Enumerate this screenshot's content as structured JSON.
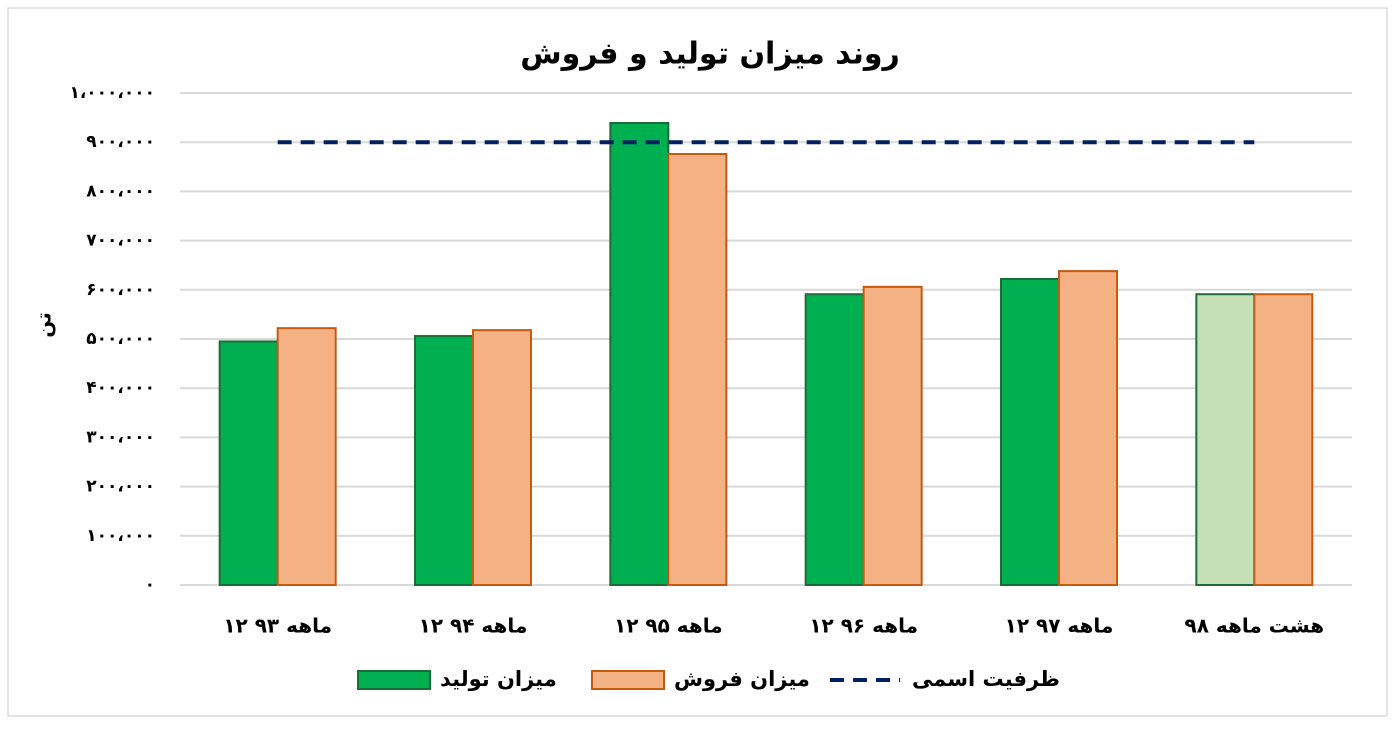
{
  "chart_data": {
    "type": "bar",
    "title": "روند میزان تولید و فروش",
    "y_label": "تن",
    "categories": [
      "۱۲ ماهه ۹۳",
      "۱۲ ماهه ۹۴",
      "۱۲ ماهه ۹۵",
      "۱۲ ماهه ۹۶",
      "۱۲ ماهه ۹۷",
      "هشت ماهه ۹۸"
    ],
    "series": [
      {
        "name": "میزان تولید",
        "type": "bar",
        "color": "#00b050",
        "stroke": "#1e6b3a",
        "colors": [
          "#00b050",
          "#00b050",
          "#00b050",
          "#00b050",
          "#00b050",
          "#c5e0b4"
        ],
        "values": [
          495000,
          506000,
          939000,
          591000,
          622000,
          591000
        ]
      },
      {
        "name": "میزان فروش",
        "type": "bar",
        "color": "#f4b183",
        "stroke": "#c55a11",
        "values": [
          522000,
          518000,
          876000,
          606000,
          638000,
          591000
        ]
      },
      {
        "name": "ظرفیت اسمی",
        "type": "line",
        "color": "#002060",
        "dashed": true,
        "values": [
          900000,
          900000,
          900000,
          900000,
          900000,
          900000
        ]
      }
    ],
    "ylim": [
      0,
      1000000
    ],
    "yticks": [
      {
        "value": 0,
        "label": "۰"
      },
      {
        "value": 100000,
        "label": "۱۰۰،۰۰۰"
      },
      {
        "value": 200000,
        "label": "۲۰۰،۰۰۰"
      },
      {
        "value": 300000,
        "label": "۳۰۰،۰۰۰"
      },
      {
        "value": 400000,
        "label": "۴۰۰،۰۰۰"
      },
      {
        "value": 500000,
        "label": "۵۰۰،۰۰۰"
      },
      {
        "value": 600000,
        "label": "۶۰۰،۰۰۰"
      },
      {
        "value": 700000,
        "label": "۷۰۰،۰۰۰"
      },
      {
        "value": 800000,
        "label": "۸۰۰،۰۰۰"
      },
      {
        "value": 900000,
        "label": "۹۰۰،۰۰۰"
      },
      {
        "value": 1000000,
        "label": "۱،۰۰۰،۰۰۰"
      }
    ],
    "grid": true,
    "legend": "bottom"
  }
}
